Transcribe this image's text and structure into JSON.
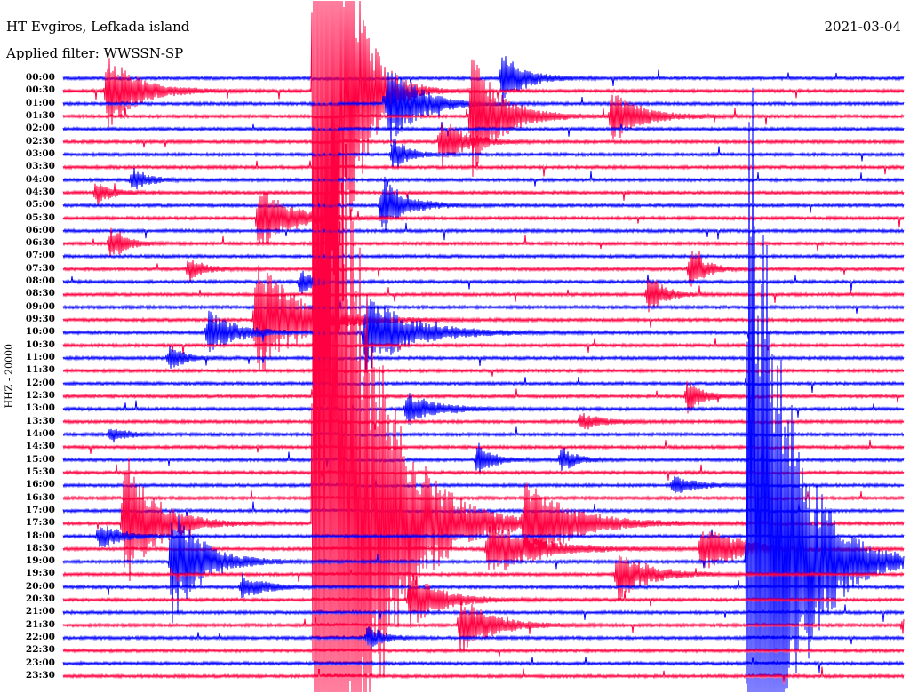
{
  "header": {
    "station": "HT Evgiros, Lefkada island",
    "filter": "Applied filter: WWSSN-SP",
    "date": "2021-03-04"
  },
  "chart_data": {
    "type": "line",
    "title": "HT Evgiros, Lefkada island",
    "subtitle": "Applied filter: WWSSN-SP",
    "ylabel": "HHZ - 20000",
    "xlabel": "",
    "minutes_per_line": 30,
    "colors": {
      "even": "#0000ff",
      "odd": "#ff0040"
    },
    "trace_labels": [
      "00:00",
      "00:30",
      "01:00",
      "01:30",
      "02:00",
      "02:30",
      "03:00",
      "03:30",
      "04:00",
      "04:30",
      "05:00",
      "05:30",
      "06:00",
      "06:30",
      "07:00",
      "07:30",
      "08:00",
      "08:30",
      "09:00",
      "09:30",
      "10:00",
      "10:30",
      "11:00",
      "11:30",
      "12:00",
      "12:30",
      "13:00",
      "13:30",
      "14:00",
      "14:30",
      "15:00",
      "15:30",
      "16:00",
      "16:30",
      "17:00",
      "17:30",
      "18:00",
      "18:30",
      "19:00",
      "19:30",
      "20:00",
      "20:30",
      "21:00",
      "21:30",
      "22:00",
      "22:30",
      "23:00",
      "23:30"
    ],
    "events": [
      {
        "row": 1,
        "minute": 1.6,
        "amp": 45,
        "decay": 2
      },
      {
        "row": 1,
        "minute": 9.0,
        "amp": 900,
        "decay": 1.5
      },
      {
        "row": 2,
        "minute": 11.6,
        "amp": 55,
        "decay": 2
      },
      {
        "row": 0,
        "minute": 15.7,
        "amp": 30,
        "decay": 1.5
      },
      {
        "row": 3,
        "minute": 14.6,
        "amp": 70,
        "decay": 2
      },
      {
        "row": 3,
        "minute": 19.6,
        "amp": 30,
        "decay": 2
      },
      {
        "row": 5,
        "minute": 13.5,
        "amp": 30,
        "decay": 1.5
      },
      {
        "row": 6,
        "minute": 11.8,
        "amp": 20,
        "decay": 1
      },
      {
        "row": 8,
        "minute": 2.5,
        "amp": 15,
        "decay": 1
      },
      {
        "row": 9,
        "minute": 1.2,
        "amp": 15,
        "decay": 1
      },
      {
        "row": 10,
        "minute": 11.4,
        "amp": 35,
        "decay": 1.5
      },
      {
        "row": 10,
        "minute": 31.0,
        "amp": 12,
        "decay": 1
      },
      {
        "row": 11,
        "minute": 7.0,
        "amp": 40,
        "decay": 2
      },
      {
        "row": 13,
        "minute": 1.7,
        "amp": 20,
        "decay": 1
      },
      {
        "row": 15,
        "minute": 4.5,
        "amp": 15,
        "decay": 1
      },
      {
        "row": 15,
        "minute": 22.4,
        "amp": 25,
        "decay": 1
      },
      {
        "row": 16,
        "minute": 8.5,
        "amp": 15,
        "decay": 1
      },
      {
        "row": 17,
        "minute": 20.9,
        "amp": 25,
        "decay": 1
      },
      {
        "row": 19,
        "minute": 6.9,
        "amp": 70,
        "decay": 3
      },
      {
        "row": 20,
        "minute": 5.2,
        "amp": 25,
        "decay": 2
      },
      {
        "row": 20,
        "minute": 10.8,
        "amp": 45,
        "decay": 3
      },
      {
        "row": 22,
        "minute": 3.8,
        "amp": 15,
        "decay": 1
      },
      {
        "row": 25,
        "minute": 22.3,
        "amp": 20,
        "decay": 1
      },
      {
        "row": 26,
        "minute": 12.3,
        "amp": 18,
        "decay": 2
      },
      {
        "row": 27,
        "minute": 18.5,
        "amp": 10,
        "decay": 1.5
      },
      {
        "row": 28,
        "minute": 1.7,
        "amp": 10,
        "decay": 1
      },
      {
        "row": 30,
        "minute": 14.8,
        "amp": 20,
        "decay": 1
      },
      {
        "row": 30,
        "minute": 17.8,
        "amp": 15,
        "decay": 1
      },
      {
        "row": 32,
        "minute": 21.8,
        "amp": 12,
        "decay": 1.5
      },
      {
        "row": 35,
        "minute": 2.2,
        "amp": 90,
        "decay": 2
      },
      {
        "row": 35,
        "minute": 9.0,
        "amp": 900,
        "decay": 3
      },
      {
        "row": 35,
        "minute": 16.5,
        "amp": 50,
        "decay": 3
      },
      {
        "row": 36,
        "minute": 1.3,
        "amp": 15,
        "decay": 1.5
      },
      {
        "row": 37,
        "minute": 15.2,
        "amp": 35,
        "decay": 3
      },
      {
        "row": 37,
        "minute": 22.8,
        "amp": 25,
        "decay": 3
      },
      {
        "row": 38,
        "minute": 3.9,
        "amp": 70,
        "decay": 2
      },
      {
        "row": 38,
        "minute": 24.5,
        "amp": 600,
        "decay": 2.5
      },
      {
        "row": 39,
        "minute": 19.8,
        "amp": 30,
        "decay": 2
      },
      {
        "row": 40,
        "minute": 6.4,
        "amp": 15,
        "decay": 1.5
      },
      {
        "row": 41,
        "minute": 12.4,
        "amp": 35,
        "decay": 2
      },
      {
        "row": 43,
        "minute": 14.2,
        "amp": 35,
        "decay": 2
      },
      {
        "row": 43,
        "minute": 30.0,
        "amp": 12,
        "decay": 1
      },
      {
        "row": 44,
        "minute": 10.9,
        "amp": 15,
        "decay": 1
      }
    ]
  }
}
